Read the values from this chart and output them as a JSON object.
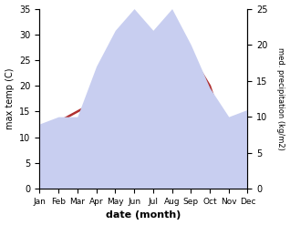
{
  "months": [
    "Jan",
    "Feb",
    "Mar",
    "Apr",
    "May",
    "Jun",
    "Jul",
    "Aug",
    "Sep",
    "Oct",
    "Nov",
    "Dec"
  ],
  "max_temp": [
    8,
    13,
    15,
    17,
    24,
    34,
    30,
    34,
    26,
    20,
    9,
    9
  ],
  "precipitation": [
    9,
    10,
    10,
    17,
    22,
    25,
    22,
    25,
    20,
    14,
    10,
    11
  ],
  "temp_color": "#b03030",
  "precip_fill_color": "#c8cef0",
  "ylim_temp": [
    0,
    35
  ],
  "ylim_precip": [
    0,
    25
  ],
  "ylabel_left": "max temp (C)",
  "ylabel_right": "med. precipitation (kg/m2)",
  "xlabel": "date (month)",
  "bg_color": "#ffffff",
  "temp_yticks": [
    0,
    5,
    10,
    15,
    20,
    25,
    30,
    35
  ],
  "precip_yticks": [
    0,
    5,
    10,
    15,
    20,
    25
  ]
}
